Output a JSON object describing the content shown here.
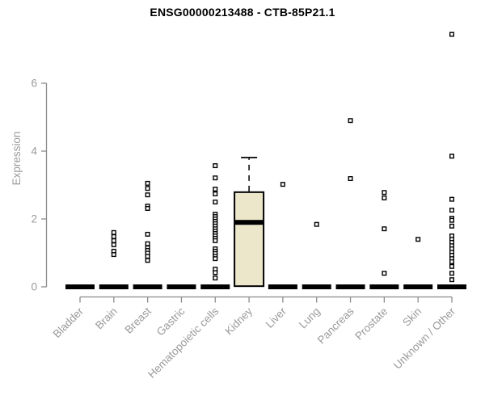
{
  "chart_data": {
    "type": "boxplot",
    "title": "ENSG00000213488 - CTB-85P21.1",
    "ylabel": "Expression",
    "xlabel": "",
    "ylim": [
      0,
      6
    ],
    "yticks": [
      0,
      2,
      4,
      6
    ],
    "grid": false,
    "legend": false,
    "categories": [
      "Bladder",
      "Brain",
      "Breast",
      "Gastric",
      "Hematopoietic cells",
      "Kidney",
      "Liver",
      "Lung",
      "Pancreas",
      "Prostate",
      "Skin",
      "Unknown / Other"
    ],
    "boxes": [
      {
        "category": "Bladder",
        "q1": 0,
        "median": 0,
        "q3": 0,
        "whisker_low": 0,
        "whisker_high": 0,
        "points": []
      },
      {
        "category": "Brain",
        "q1": 0,
        "median": 0,
        "q3": 0,
        "whisker_low": 0,
        "whisker_high": 0,
        "points": [
          1.6,
          1.48,
          1.36,
          1.24,
          1.05,
          0.95
        ]
      },
      {
        "category": "Breast",
        "q1": 0,
        "median": 0,
        "q3": 0,
        "whisker_low": 0,
        "whisker_high": 0,
        "points": [
          3.05,
          2.9,
          2.71,
          2.38,
          2.31,
          1.55,
          1.27,
          1.15,
          1.07,
          0.99,
          0.9,
          0.78
        ]
      },
      {
        "category": "Gastric",
        "q1": 0,
        "median": 0,
        "q3": 0,
        "whisker_low": 0,
        "whisker_high": 0,
        "points": []
      },
      {
        "category": "Hematopoietic cells",
        "q1": 0,
        "median": 0,
        "q3": 0,
        "whisker_low": 0,
        "whisker_high": 0,
        "points": [
          3.57,
          3.21,
          2.88,
          2.74,
          2.5,
          2.14,
          2.07,
          2.0,
          1.93,
          1.86,
          1.79,
          1.71,
          1.64,
          1.57,
          1.5,
          1.43,
          1.36,
          1.12,
          1.05,
          0.98,
          0.9,
          0.83,
          0.52,
          0.42,
          0.26
        ]
      },
      {
        "category": "Kidney",
        "q1": 0.02,
        "median": 1.9,
        "q3": 2.79,
        "whisker_low": 0.02,
        "whisker_high": 3.81,
        "points": []
      },
      {
        "category": "Liver",
        "q1": 0,
        "median": 0,
        "q3": 0,
        "whisker_low": 0,
        "whisker_high": 0,
        "points": [
          3.02
        ]
      },
      {
        "category": "Lung",
        "q1": 0,
        "median": 0,
        "q3": 0,
        "whisker_low": 0,
        "whisker_high": 0,
        "points": [
          1.84
        ]
      },
      {
        "category": "Pancreas",
        "q1": 0,
        "median": 0,
        "q3": 0,
        "whisker_low": 0,
        "whisker_high": 0,
        "points": [
          4.9,
          3.19
        ]
      },
      {
        "category": "Prostate",
        "q1": 0,
        "median": 0,
        "q3": 0,
        "whisker_low": 0,
        "whisker_high": 0,
        "points": [
          2.78,
          2.62,
          1.71,
          0.4
        ]
      },
      {
        "category": "Skin",
        "q1": 0,
        "median": 0,
        "q3": 0,
        "whisker_low": 0,
        "whisker_high": 0,
        "points": [
          1.4
        ]
      },
      {
        "category": "Unknown / Other",
        "q1": 0,
        "median": 0,
        "q3": 0,
        "whisker_low": 0,
        "whisker_high": 0,
        "points": [
          7.44,
          3.85,
          2.58,
          2.26,
          2.02,
          1.96,
          1.79,
          1.5,
          1.4,
          1.31,
          1.21,
          1.12,
          1.02,
          0.93,
          0.83,
          0.74,
          0.6,
          0.4,
          0.21
        ]
      }
    ],
    "colors": {
      "box_fill": "#ece7cb",
      "box_stroke": "#000000",
      "median": "#000000",
      "collapsed_box": "#000000",
      "point_stroke": "#000000",
      "point_fill": "#ffffff",
      "axis": "#8c8c8c",
      "text": "#9a9a9a",
      "title": "#000000",
      "background": "#ffffff"
    }
  }
}
